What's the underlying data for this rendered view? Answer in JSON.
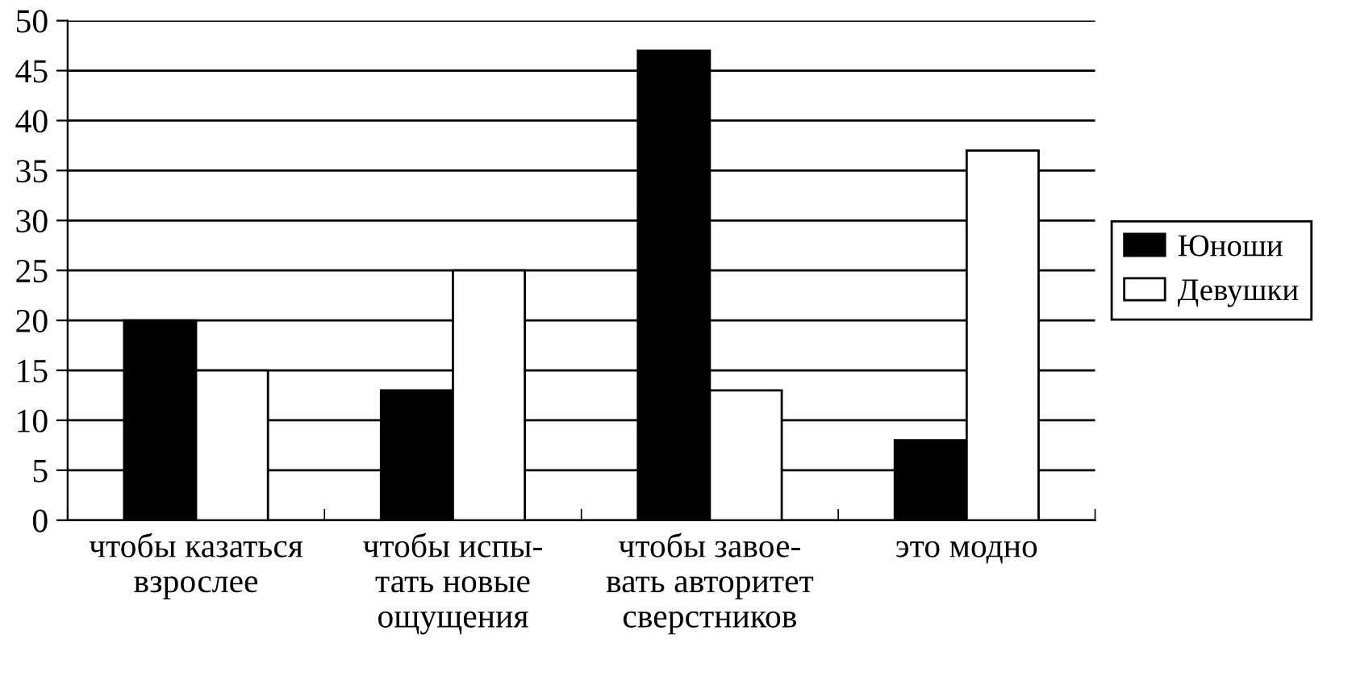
{
  "chart_data": {
    "type": "bar",
    "categories": [
      "чтобы казаться\nвзрослее",
      "чтобы испы-\nтать новые\nощущения",
      "чтобы завое-\nвать авторитет\nсверстников",
      "это модно"
    ],
    "series": [
      {
        "name": "Юноши",
        "color": "#000000",
        "values": [
          20,
          13,
          47,
          8
        ]
      },
      {
        "name": "Девушки",
        "color": "#ffffff",
        "values": [
          15,
          25,
          13,
          37
        ]
      }
    ],
    "ylim": [
      0,
      50
    ],
    "yticks": [
      0,
      5,
      10,
      15,
      20,
      25,
      30,
      35,
      40,
      45,
      50
    ],
    "grid": "y",
    "legend": "right"
  }
}
